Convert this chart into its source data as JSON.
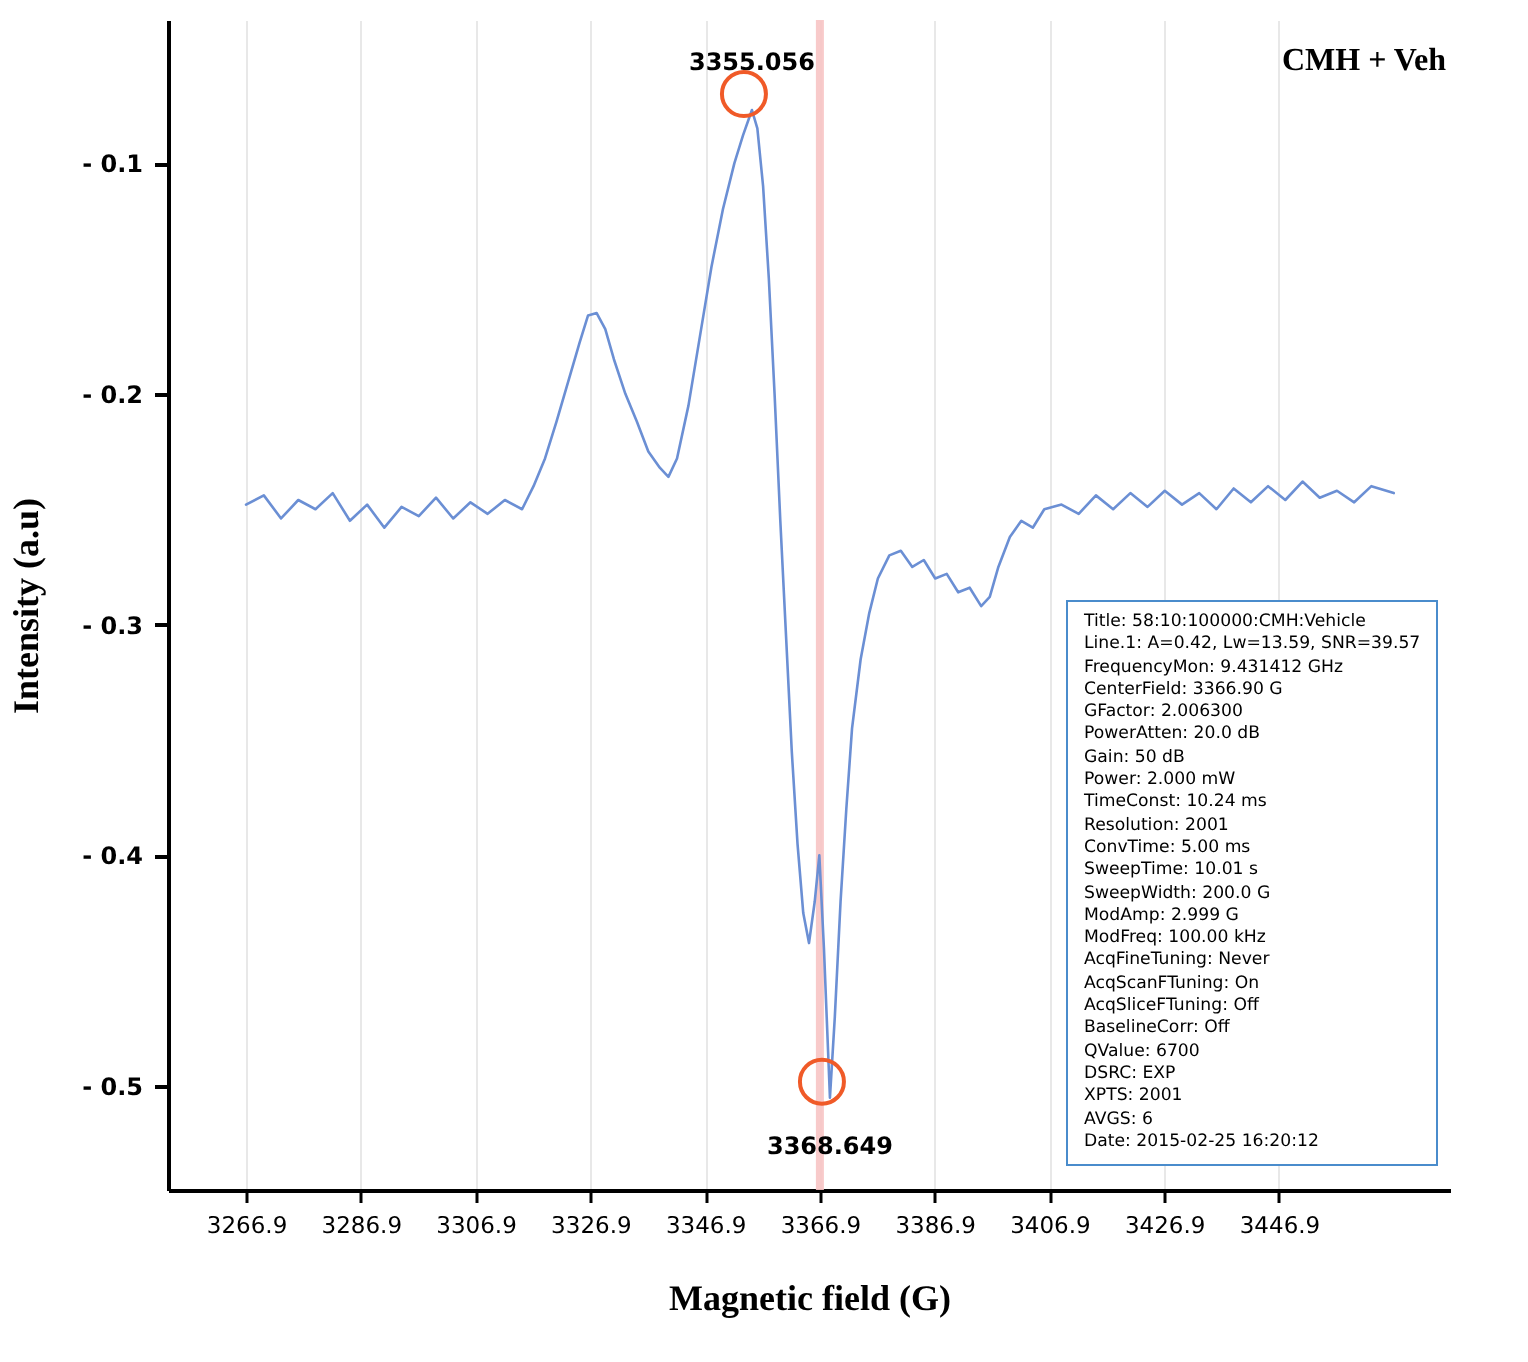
{
  "chart_data": {
    "type": "line",
    "title": "CMH + Veh",
    "xlabel": "Magnetic field (G)",
    "ylabel": "Intensity (a.u)",
    "x": [
      3266.9,
      3270,
      3273,
      3276,
      3279,
      3282,
      3285,
      3288,
      3291,
      3294,
      3297,
      3300,
      3303,
      3306,
      3309,
      3312,
      3315,
      3317,
      3319,
      3321,
      3323,
      3325,
      3326.5,
      3328,
      3329.5,
      3331,
      3333,
      3335,
      3337,
      3339,
      3340.5,
      3342,
      3344,
      3346,
      3348,
      3350,
      3352,
      3353.5,
      3355.056,
      3356,
      3357,
      3358,
      3359,
      3360,
      3361,
      3362,
      3363,
      3364,
      3365,
      3366,
      3366.8,
      3367.6,
      3368.649,
      3369.5,
      3370.5,
      3371.5,
      3372.5,
      3374,
      3375.5,
      3377,
      3379,
      3381,
      3383,
      3385,
      3387,
      3389,
      3391,
      3393,
      3395,
      3396.5,
      3398,
      3400,
      3402,
      3404,
      3406,
      3409,
      3412,
      3415,
      3418,
      3421,
      3424,
      3427,
      3430,
      3433,
      3436,
      3439,
      3442,
      3445,
      3448,
      3451,
      3454,
      3457,
      3460,
      3463,
      3466.9
    ],
    "series": [
      {
        "color": "#6b8fd4",
        "values": [
          -0.248,
          -0.244,
          -0.254,
          -0.246,
          -0.25,
          -0.243,
          -0.255,
          -0.248,
          -0.258,
          -0.249,
          -0.253,
          -0.245,
          -0.254,
          -0.247,
          -0.252,
          -0.246,
          -0.25,
          -0.24,
          -0.228,
          -0.212,
          -0.195,
          -0.178,
          -0.166,
          -0.165,
          -0.172,
          -0.185,
          -0.2,
          -0.212,
          -0.225,
          -0.232,
          -0.236,
          -0.228,
          -0.205,
          -0.175,
          -0.145,
          -0.12,
          -0.1,
          -0.088,
          -0.077,
          -0.085,
          -0.11,
          -0.15,
          -0.2,
          -0.255,
          -0.305,
          -0.355,
          -0.395,
          -0.425,
          -0.438,
          -0.42,
          -0.4,
          -0.44,
          -0.505,
          -0.47,
          -0.42,
          -0.38,
          -0.345,
          -0.315,
          -0.295,
          -0.28,
          -0.27,
          -0.268,
          -0.275,
          -0.272,
          -0.28,
          -0.278,
          -0.286,
          -0.284,
          -0.292,
          -0.288,
          -0.275,
          -0.262,
          -0.255,
          -0.258,
          -0.25,
          -0.248,
          -0.252,
          -0.244,
          -0.25,
          -0.243,
          -0.249,
          -0.242,
          -0.248,
          -0.243,
          -0.25,
          -0.241,
          -0.247,
          -0.24,
          -0.246,
          -0.238,
          -0.245,
          -0.242,
          -0.247,
          -0.24,
          -0.243
        ]
      }
    ],
    "xlim": [
      3253.3,
      3476.7
    ],
    "xticks": [
      3266.9,
      3286.9,
      3306.9,
      3326.9,
      3346.9,
      3366.9,
      3386.9,
      3406.9,
      3426.9,
      3446.9
    ],
    "ylim": [
      -0.545,
      -0.038
    ],
    "yticks": [
      {
        "value": -0.1,
        "label": "- 0.1"
      },
      {
        "value": -0.2,
        "label": "- 0.2"
      },
      {
        "value": -0.3,
        "label": "- 0.3"
      },
      {
        "value": -0.4,
        "label": "- 0.4"
      },
      {
        "value": -0.5,
        "label": "- 0.5"
      }
    ],
    "grid": "x",
    "line_style": "solid",
    "marker": "none",
    "ref_lines": [
      {
        "axis": "x",
        "value": 3366.9,
        "color": "#f7c4c4"
      }
    ],
    "annotations": [
      {
        "text": "3355.056",
        "x": 3355.056,
        "y": -0.077
      },
      {
        "text": "3368.649",
        "x": 3368.649,
        "y": -0.505
      },
      "Title: 58:10:100000:CMH:Vehicle",
      "Line.1: A=0.42, Lw=13.59, SNR=39.57",
      "FrequencyMon: 9.431412 GHz",
      "CenterField: 3366.90 G",
      "GFactor: 2.006300",
      "PowerAtten: 20.0 dB",
      "Gain: 50 dB",
      "Power: 2.000 mW",
      "TimeConst: 10.24 ms",
      "Resolution: 2001",
      "ConvTime: 5.00 ms",
      "SweepTime: 10.01 s",
      "SweepWidth: 200.0 G",
      "ModAmp: 2.999 G",
      "ModFreq: 100.00 kHz",
      "AcqFineTuning: Never",
      "AcqScanFTuning: On",
      "AcqSliceFTuning: Off",
      "BaselineCorr: Off",
      "QValue: 6700",
      "DSRC: EXP",
      "XPTS: 2001",
      "AVGS: 6",
      "Date: 2015-02-25 16:20:12"
    ]
  }
}
